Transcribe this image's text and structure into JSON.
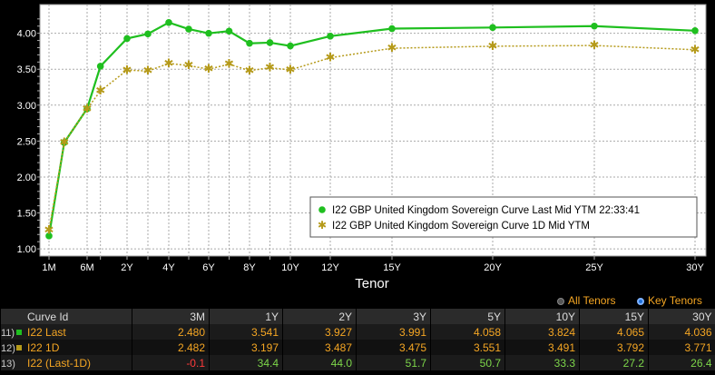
{
  "chart_data": {
    "type": "line",
    "title": "",
    "xlabel": "Tenor",
    "ylabel": "",
    "ylim": [
      0.9,
      4.4
    ],
    "y_ticks": [
      "1.00",
      "1.50",
      "2.00",
      "2.50",
      "3.00",
      "3.50",
      "4.00"
    ],
    "x_ticks": [
      "1M",
      "6M",
      "1Y",
      "2Y",
      "3Y",
      "4Y",
      "5Y",
      "6Y",
      "7Y",
      "8Y",
      "9Y",
      "10Y",
      "12Y",
      "15Y",
      "20Y",
      "25Y",
      "30Y"
    ],
    "x_tick_labels": [
      "1M",
      "6M",
      "2Y",
      "4Y",
      "6Y",
      "8Y",
      "10Y",
      "12Y",
      "15Y",
      "20Y",
      "25Y",
      "30Y"
    ],
    "grid": true,
    "legend_position": "bottom-right",
    "series": [
      {
        "name": "I22 GBP United Kingdom Sovereign Curve Last Mid YTM 22:33:41",
        "color": "#1fbf1f",
        "marker": "circle",
        "x": [
          "1M",
          "3M",
          "6M",
          "1Y",
          "2Y",
          "3Y",
          "4Y",
          "5Y",
          "6Y",
          "7Y",
          "8Y",
          "9Y",
          "10Y",
          "12Y",
          "15Y",
          "20Y",
          "25Y",
          "30Y"
        ],
        "values": [
          1.18,
          2.48,
          2.95,
          3.541,
          3.927,
          3.991,
          4.15,
          4.058,
          4.0,
          4.03,
          3.86,
          3.87,
          3.824,
          3.96,
          4.065,
          4.08,
          4.1,
          4.036
        ]
      },
      {
        "name": "I22 GBP United Kingdom Sovereign Curve 1D Mid YTM",
        "color": "#b59a1a",
        "marker": "star",
        "x": [
          "1M",
          "3M",
          "6M",
          "1Y",
          "2Y",
          "3Y",
          "4Y",
          "5Y",
          "6Y",
          "7Y",
          "8Y",
          "9Y",
          "10Y",
          "12Y",
          "15Y",
          "20Y",
          "25Y",
          "30Y"
        ],
        "values": [
          1.26,
          2.482,
          2.95,
          3.197,
          3.487,
          3.475,
          3.58,
          3.551,
          3.5,
          3.57,
          3.48,
          3.52,
          3.491,
          3.66,
          3.792,
          3.82,
          3.83,
          3.771
        ]
      }
    ]
  },
  "modes": {
    "all_tenors": "All Tenors",
    "key_tenors": "Key Tenors"
  },
  "table": {
    "headers": [
      "Curve Id",
      "3M",
      "1Y",
      "2Y",
      "3Y",
      "5Y",
      "10Y",
      "15Y",
      "30Y"
    ],
    "rows": [
      {
        "num": "11)",
        "label": "I22 Last",
        "swatch": "#1fbf1f",
        "values": [
          "2.480",
          "3.541",
          "3.927",
          "3.991",
          "4.058",
          "3.824",
          "4.065",
          "4.036"
        ]
      },
      {
        "num": "12)",
        "label": "I22 1D",
        "swatch": "#b59a1a",
        "values": [
          "2.482",
          "3.197",
          "3.487",
          "3.475",
          "3.551",
          "3.491",
          "3.792",
          "3.771"
        ]
      },
      {
        "num": "13)",
        "label": "I22 (Last-1D)",
        "swatch": "",
        "values": [
          "-0.1",
          "34.4",
          "44.0",
          "51.7",
          "50.7",
          "33.3",
          "27.2",
          "26.4"
        ]
      }
    ]
  }
}
